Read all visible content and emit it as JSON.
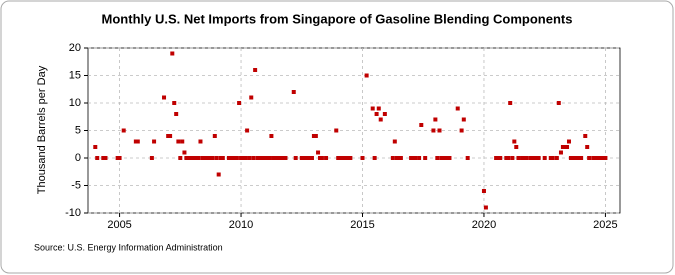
{
  "chart_data": {
    "type": "scatter",
    "title": "Monthly U.S. Net Imports from Singapore of Gasoline Blending Components",
    "y_label": "Thousand Barrels per Day",
    "source": "Source: U.S. Energy Information Administration",
    "color": "#c00000",
    "grid": true,
    "xlim": [
      2003.7,
      2025.6
    ],
    "xticks": [
      2005,
      2010,
      2015,
      2020,
      2025
    ],
    "ylim": [
      -10,
      20
    ],
    "yticks": [
      -10,
      -5,
      0,
      5,
      10,
      15,
      20
    ],
    "x": [
      2004.0,
      2004.08,
      2004.33,
      2004.42,
      2004.92,
      2005.0,
      2005.17,
      2005.67,
      2005.75,
      2006.33,
      2006.42,
      2006.83,
      2007.0,
      2007.08,
      2007.17,
      2007.25,
      2007.33,
      2007.42,
      2007.5,
      2007.58,
      2007.67,
      2007.75,
      2007.83,
      2007.92,
      2008.0,
      2008.08,
      2008.17,
      2008.25,
      2008.33,
      2008.42,
      2008.5,
      2008.58,
      2008.67,
      2008.75,
      2008.83,
      2008.92,
      2009.0,
      2009.08,
      2009.17,
      2009.25,
      2009.5,
      2009.58,
      2009.67,
      2009.75,
      2009.83,
      2009.92,
      2010.0,
      2010.08,
      2010.17,
      2010.25,
      2010.33,
      2010.42,
      2010.5,
      2010.58,
      2010.67,
      2010.75,
      2010.83,
      2010.92,
      2011.0,
      2011.08,
      2011.17,
      2011.25,
      2011.33,
      2011.42,
      2011.5,
      2011.58,
      2011.67,
      2011.75,
      2011.83,
      2012.17,
      2012.25,
      2012.5,
      2012.58,
      2012.67,
      2012.75,
      2012.83,
      2012.92,
      2013.0,
      2013.08,
      2013.17,
      2013.25,
      2013.33,
      2013.5,
      2013.92,
      2014.0,
      2014.08,
      2014.17,
      2014.25,
      2014.33,
      2014.42,
      2014.5,
      2015.0,
      2015.17,
      2015.42,
      2015.5,
      2015.58,
      2015.67,
      2015.75,
      2015.92,
      2016.25,
      2016.33,
      2016.42,
      2016.5,
      2016.58,
      2017.0,
      2017.08,
      2017.17,
      2017.33,
      2017.42,
      2017.58,
      2017.92,
      2018.0,
      2018.08,
      2018.17,
      2018.25,
      2018.33,
      2018.42,
      2018.5,
      2018.58,
      2018.92,
      2019.08,
      2019.17,
      2019.33,
      2020.0,
      2020.08,
      2020.5,
      2020.58,
      2020.67,
      2020.92,
      2021.0,
      2021.08,
      2021.17,
      2021.25,
      2021.33,
      2021.42,
      2021.58,
      2021.67,
      2021.75,
      2021.92,
      2022.0,
      2022.08,
      2022.17,
      2022.25,
      2022.5,
      2022.75,
      2022.83,
      2023.0,
      2023.08,
      2023.17,
      2023.25,
      2023.33,
      2023.42,
      2023.5,
      2023.58,
      2023.67,
      2023.75,
      2023.83,
      2023.92,
      2024.0,
      2024.17,
      2024.25,
      2024.33,
      2024.5,
      2024.58,
      2024.67,
      2024.75,
      2024.83,
      2024.92,
      2025.0
    ],
    "values": [
      2,
      0,
      0,
      0,
      0,
      0,
      5,
      3,
      3,
      0,
      3,
      11,
      4,
      4,
      19,
      10,
      8,
      3,
      0,
      3,
      1,
      0,
      0,
      0,
      0,
      0,
      0,
      0,
      3,
      0,
      0,
      0,
      0,
      0,
      0,
      4,
      0,
      -3,
      0,
      0,
      0,
      0,
      0,
      0,
      0,
      10,
      0,
      0,
      0,
      5,
      0,
      11,
      0,
      16,
      0,
      0,
      0,
      0,
      0,
      0,
      0,
      4,
      0,
      0,
      0,
      0,
      0,
      0,
      0,
      12,
      0,
      0,
      0,
      0,
      0,
      0,
      0,
      4,
      4,
      1,
      0,
      0,
      0,
      5,
      0,
      0,
      0,
      0,
      0,
      0,
      0,
      0,
      15,
      9,
      0,
      8,
      9,
      7,
      8,
      0,
      3,
      0,
      0,
      0,
      0,
      0,
      0,
      0,
      6,
      0,
      5,
      7,
      0,
      5,
      0,
      0,
      0,
      0,
      0,
      9,
      5,
      7,
      0,
      -6,
      -9,
      0,
      0,
      0,
      0,
      0,
      10,
      0,
      3,
      2,
      0,
      0,
      0,
      0,
      0,
      0,
      0,
      0,
      0,
      0,
      0,
      0,
      0,
      10,
      1,
      2,
      2,
      2,
      3,
      0,
      0,
      0,
      0,
      0,
      0,
      4,
      2,
      0,
      0,
      0,
      0,
      0,
      0,
      0,
      0
    ]
  }
}
